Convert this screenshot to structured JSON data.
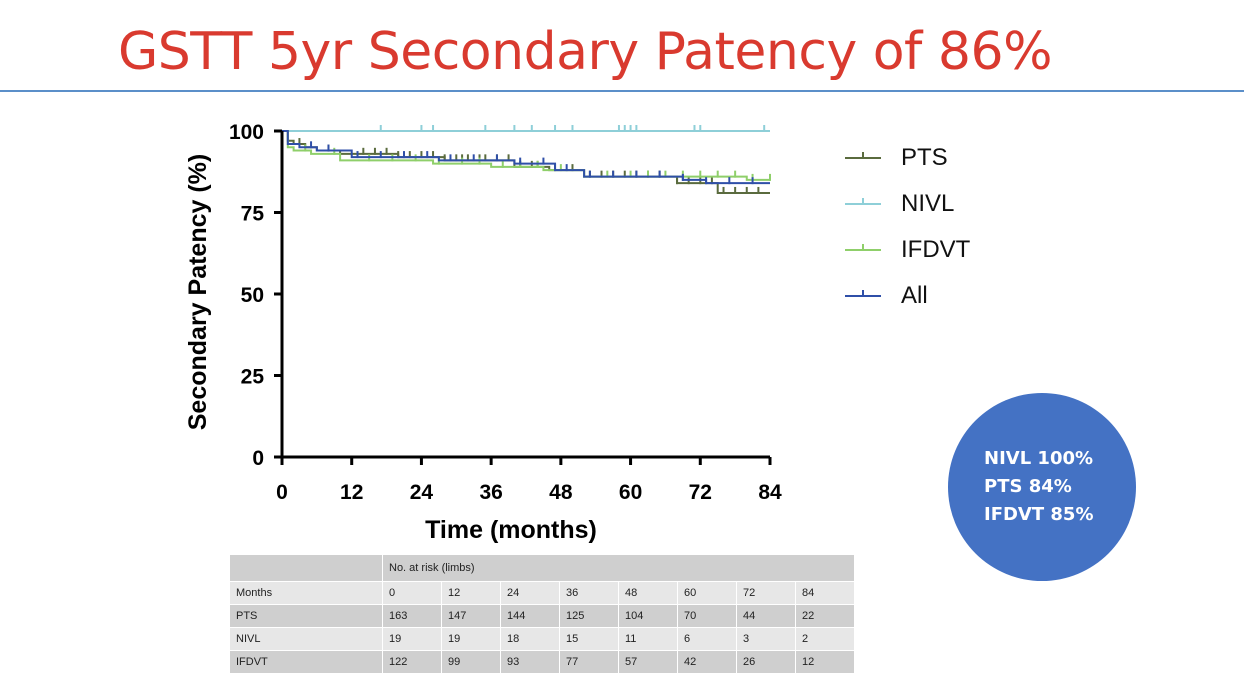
{
  "slide": {
    "title": "GSTT 5yr Secondary Patency of 86%"
  },
  "colors": {
    "title": "#d93a2f",
    "rule": "#5b8fc9",
    "PTS": "#5a6b3e",
    "NIVL": "#8ecfd8",
    "IFDVT": "#8fcf6a",
    "All": "#2f4fa8",
    "circle": "#4472c4"
  },
  "chart_data": {
    "type": "line",
    "subtype": "kaplan-meier step",
    "xlabel": "Time (months)",
    "ylabel": "Secondary Patency (%)",
    "xlim": [
      0,
      84
    ],
    "ylim": [
      0,
      100
    ],
    "xticks": [
      0,
      12,
      24,
      36,
      48,
      60,
      72,
      84
    ],
    "yticks": [
      0,
      25,
      50,
      75,
      100
    ],
    "grid": false,
    "legend_placement": "right",
    "series": [
      {
        "name": "PTS",
        "x": [
          0,
          1,
          2,
          4,
          6,
          10,
          20,
          28,
          40,
          46,
          52,
          68,
          75
        ],
        "y": [
          100,
          97,
          96,
          95,
          94,
          93,
          92,
          91,
          89,
          88,
          86,
          84,
          81
        ],
        "censored_x": [
          3,
          8,
          14,
          16,
          18,
          20,
          22,
          24,
          26,
          28,
          30,
          31,
          32,
          34,
          35,
          37,
          39,
          41,
          43,
          44,
          47,
          50,
          53,
          55,
          57,
          59,
          61,
          63,
          65,
          68,
          70,
          72,
          74,
          76,
          78,
          80,
          82
        ]
      },
      {
        "name": "NIVL",
        "x": [
          0
        ],
        "y": [
          100
        ],
        "censored_x": [
          17,
          24,
          26,
          35,
          40,
          43,
          47,
          50,
          58,
          59,
          60,
          61,
          71,
          72,
          83
        ]
      },
      {
        "name": "IFDVT",
        "x": [
          0,
          1,
          2,
          5,
          10,
          26,
          36,
          45,
          52,
          80
        ],
        "y": [
          100,
          95,
          94,
          93,
          91,
          90,
          89,
          88,
          86,
          85
        ],
        "censored_x": [
          4,
          9,
          15,
          19,
          23,
          27,
          31,
          34,
          38,
          41,
          44,
          48,
          52,
          56,
          60,
          63,
          66,
          69,
          72,
          75,
          78,
          81,
          84
        ]
      },
      {
        "name": "All",
        "x": [
          0,
          1,
          3,
          6,
          12,
          27,
          40,
          47,
          52,
          69,
          73
        ],
        "y": [
          100,
          96,
          95,
          94,
          92,
          91,
          90,
          88,
          86,
          85,
          84
        ],
        "censored_x": [
          5,
          8,
          13,
          17,
          21,
          25,
          29,
          33,
          37,
          41,
          45,
          49,
          53,
          57,
          61,
          65,
          69,
          73,
          77,
          81
        ]
      }
    ]
  },
  "callout": {
    "lines": [
      "NIVL 100%",
      "PTS 84%",
      "IFDVT 85%"
    ]
  },
  "risk_table": {
    "header": "No. at risk (limbs)",
    "months_label": "Months",
    "months": [
      "0",
      "12",
      "24",
      "36",
      "48",
      "60",
      "72",
      "84"
    ],
    "rows": [
      {
        "label": "PTS",
        "values": [
          "163",
          "147",
          "144",
          "125",
          "104",
          "70",
          "44",
          "22"
        ]
      },
      {
        "label": "NIVL",
        "values": [
          "19",
          "19",
          "18",
          "15",
          "11",
          "6",
          "3",
          "2"
        ]
      },
      {
        "label": "IFDVT",
        "values": [
          "122",
          "99",
          "93",
          "77",
          "57",
          "42",
          "26",
          "12"
        ]
      }
    ]
  }
}
